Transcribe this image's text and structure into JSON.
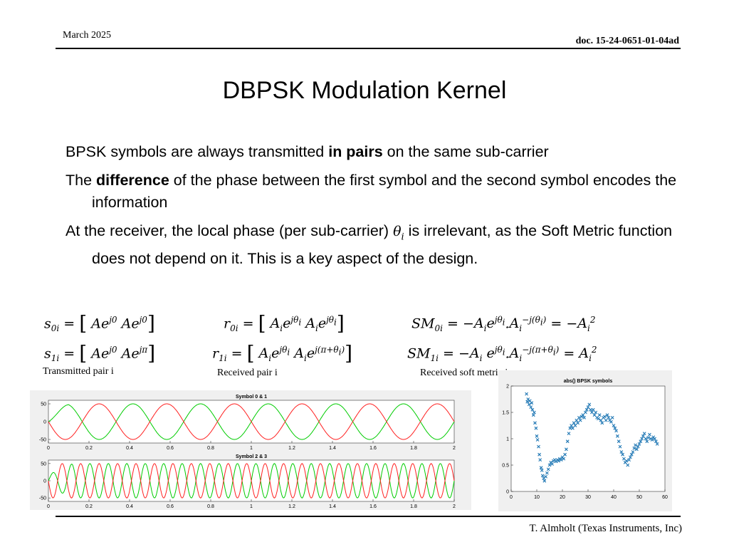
{
  "header": {
    "date": "March 2025",
    "doc_id": "doc. 15-24-0651-01-04ad"
  },
  "slide": {
    "title": "DBPSK Modulation Kernel",
    "bullets": [
      {
        "pre": "BPSK symbols are always transmitted ",
        "bold": "in pairs",
        "post": " on the same sub-carrier"
      },
      {
        "pre": "The ",
        "bold": "difference",
        "post": " of the phase between the first symbol and the second symbol encodes the information"
      },
      {
        "pre": "At the receiver, the local phase (per sub-carrier) ",
        "math": "θ",
        "math_sub": "i",
        "post": " is irrelevant, as the Soft Metric function does not depend on it. This is a key aspect of the design."
      }
    ]
  },
  "captions": {
    "transmitted": "Transmitted pair i",
    "received": "Received pair i",
    "soft_metric": "Received soft metric i"
  },
  "colors": {
    "green": "#00cc00",
    "red": "#ff2020",
    "blue": "#1f77b4",
    "panel": "#f0f0f0"
  },
  "chart_data": [
    {
      "type": "line",
      "title": "Symbol 0 & 1",
      "xlim": [
        0,
        2
      ],
      "ylim": [
        -60,
        60
      ],
      "x_ticks": [
        "0",
        "0.2",
        "0.4",
        "0.6",
        "0.8",
        "1",
        "1.2",
        "1.4",
        "1.6",
        "1.8",
        "2"
      ],
      "y_ticks": [
        "50",
        "0",
        "-50"
      ],
      "series": [
        {
          "amplitude": 50,
          "cycles": 6,
          "phase_deg": 0,
          "color": "#00cc00",
          "transient_end": 0.1
        },
        {
          "amplitude": 50,
          "cycles": 6,
          "phase_deg": 180,
          "color": "#ff2020",
          "transient_end": 0
        }
      ]
    },
    {
      "type": "line",
      "title": "Symbol 2 & 3",
      "xlim": [
        0,
        2
      ],
      "ylim": [
        -60,
        60
      ],
      "x_ticks": [
        "0",
        "0.2",
        "0.4",
        "0.6",
        "0.8",
        "1",
        "1.2",
        "1.4",
        "1.6",
        "1.8",
        "2"
      ],
      "y_ticks": [
        "50",
        "0",
        "-50"
      ],
      "series": [
        {
          "amplitude": 50,
          "cycles": 22,
          "phase_deg": 0,
          "color": "#00cc00",
          "transient_end": 0.12
        },
        {
          "amplitude": 50,
          "cycles": 22,
          "phase_deg": 180,
          "color": "#ff2020",
          "transient_end": 0
        }
      ]
    },
    {
      "type": "scatter",
      "title": "abs() BPSK symbols",
      "xlim": [
        0,
        60
      ],
      "ylim": [
        0,
        2
      ],
      "x_ticks": [
        "0",
        "10",
        "20",
        "30",
        "40",
        "50",
        "60"
      ],
      "y_ticks": [
        "2",
        "1.5",
        "1",
        "0.5",
        "0"
      ],
      "marker": "x",
      "color": "#1f77b4",
      "x": [
        6,
        6.3,
        6.6,
        7,
        7.3,
        7.7,
        8,
        8.3,
        8.7,
        9,
        9.3,
        9.7,
        10,
        10.3,
        10.7,
        11,
        11.3,
        11.7,
        12,
        12.3,
        12.7,
        13,
        13.5,
        14,
        14.5,
        15,
        15.5,
        16,
        16.5,
        17,
        17.5,
        18,
        18.5,
        19,
        19.5,
        20,
        20.5,
        21,
        21.5,
        22,
        22.5,
        23,
        23.5,
        24,
        24.5,
        25,
        25.5,
        26,
        26.5,
        27,
        27.5,
        28,
        28.5,
        29,
        29.5,
        30,
        30.5,
        31,
        31.5,
        32,
        32.5,
        33,
        33.5,
        34,
        34.5,
        35,
        35.5,
        36,
        36.5,
        37,
        37.5,
        38,
        38.5,
        39,
        39.5,
        40,
        40.5,
        41,
        41.5,
        42,
        42.5,
        43,
        43.5,
        44,
        44.5,
        45,
        45.5,
        46,
        46.5,
        47,
        47.5,
        48,
        48.5,
        49,
        49.5,
        50,
        50.5,
        51,
        51.5,
        52,
        52.5,
        53,
        53.5,
        54,
        54.5,
        55,
        55.5,
        56,
        56.5,
        57
      ],
      "y": [
        1.85,
        1.7,
        1.75,
        1.65,
        1.72,
        1.6,
        1.68,
        1.55,
        1.45,
        1.5,
        1.3,
        1.2,
        1.05,
        0.98,
        0.85,
        0.7,
        0.6,
        0.45,
        0.4,
        0.3,
        0.25,
        0.2,
        0.28,
        0.35,
        0.42,
        0.5,
        0.55,
        0.52,
        0.58,
        0.6,
        0.57,
        0.6,
        0.58,
        0.62,
        0.6,
        0.65,
        0.62,
        0.7,
        0.8,
        0.95,
        1.1,
        1.2,
        1.25,
        1.2,
        1.3,
        1.25,
        1.35,
        1.3,
        1.4,
        1.35,
        1.42,
        1.45,
        1.4,
        1.5,
        1.55,
        1.6,
        1.65,
        1.55,
        1.5,
        1.55,
        1.45,
        1.5,
        1.4,
        1.38,
        1.45,
        1.35,
        1.3,
        1.4,
        1.42,
        1.35,
        1.45,
        1.4,
        1.35,
        1.32,
        1.4,
        1.25,
        1.2,
        1.15,
        1.05,
        0.95,
        0.85,
        0.75,
        0.7,
        0.62,
        0.55,
        0.58,
        0.5,
        0.6,
        0.65,
        0.7,
        0.75,
        0.82,
        0.88,
        0.8,
        0.85,
        0.9,
        0.95,
        1.0,
        1.05,
        1.1,
        1.0,
        0.95,
        1.02,
        1.08,
        1.0,
        0.98,
        1.03,
        1.0,
        0.95,
        0.9
      ]
    }
  ],
  "footer": {
    "author": "T. Almholt (Texas Instruments, Inc)"
  }
}
